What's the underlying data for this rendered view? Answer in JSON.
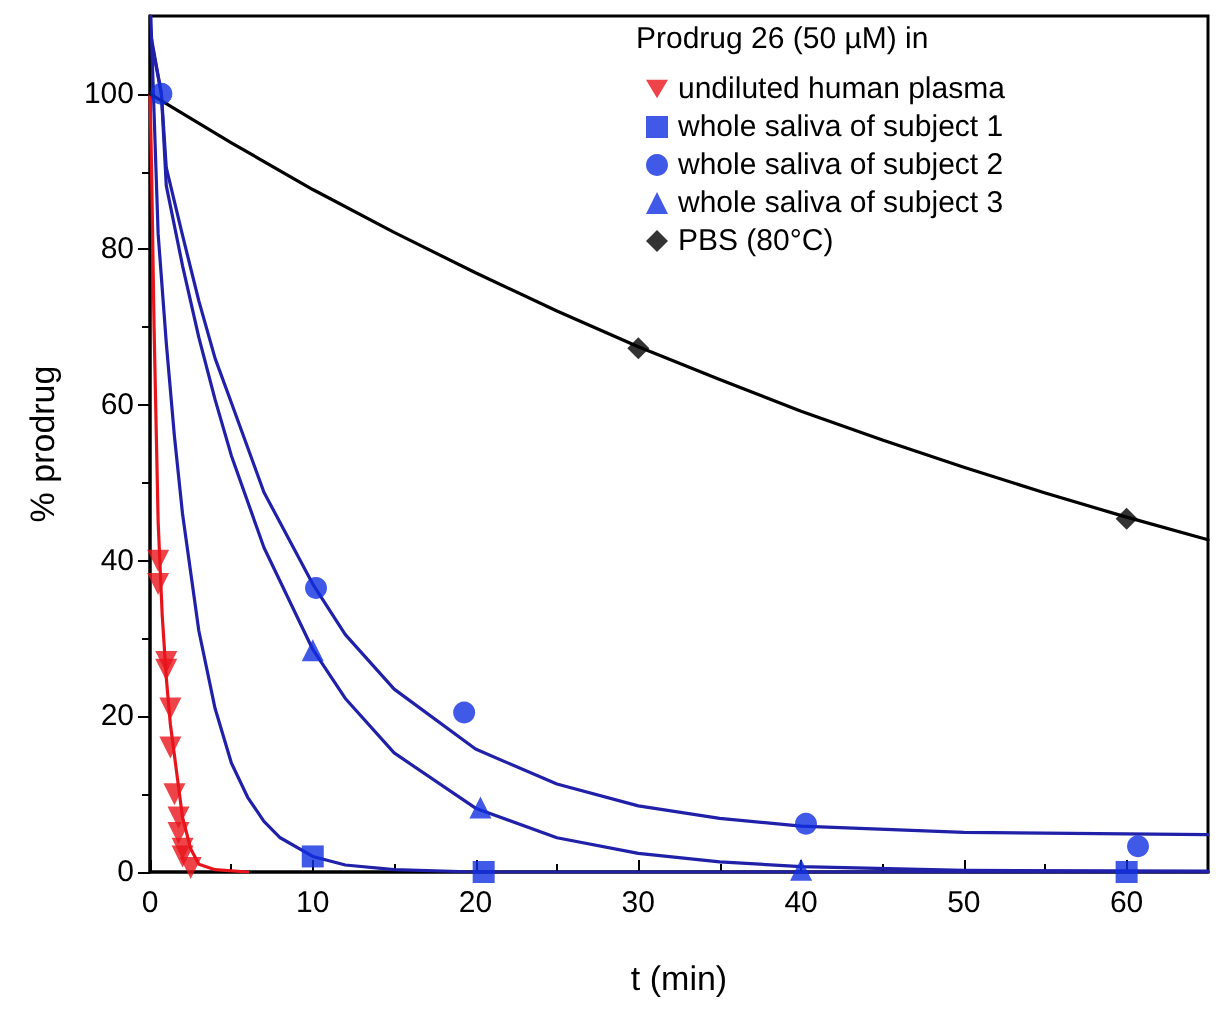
{
  "chart_data": {
    "type": "scatter",
    "xlabel": "t (min)",
    "ylabel": "% prodrug",
    "legend_title": "Prodrug 26 (50 µM) in",
    "legend": "top right",
    "grid": false,
    "xlim": [
      0,
      65
    ],
    "xticks": [
      0,
      10,
      20,
      30,
      40,
      50,
      60
    ],
    "ylim": [
      0,
      110
    ],
    "yticks": [
      0,
      20,
      40,
      60,
      80,
      100
    ],
    "series": [
      {
        "name": "undiluted human plasma",
        "color": "#e8141b",
        "marker": "triangle-down",
        "x": [
          0.5,
          0.5,
          1,
          1,
          1.25,
          1.25,
          1.5,
          1.75,
          1.75,
          2,
          2,
          2.25,
          2.5
        ],
        "values": [
          40,
          37,
          27,
          26,
          21,
          16,
          10,
          7,
          5,
          3,
          2,
          null,
          0.5
        ]
      },
      {
        "name": "whole saliva of subject 1",
        "color": "#1030e0",
        "marker": "square",
        "x": [
          10,
          20.5,
          60
        ],
        "values": [
          2,
          0,
          0
        ]
      },
      {
        "name": "whole saliva of subject 2",
        "color": "#1030e0",
        "marker": "circle",
        "x": [
          0.7,
          10.2,
          19.3,
          40.3,
          60.7
        ],
        "values": [
          100,
          36.5,
          20.5,
          6.2,
          3.3
        ]
      },
      {
        "name": "whole saliva of subject 3",
        "color": "#1030e0",
        "marker": "triangle",
        "x": [
          10,
          20.3,
          40
        ],
        "values": [
          28.5,
          8.3,
          0.3
        ]
      },
      {
        "name": "PBS (80°C)",
        "color": "#000000",
        "marker": "diamond",
        "x": [
          30,
          60
        ],
        "values": [
          67.3,
          45.4
        ]
      },
      {
        "type": "line",
        "color": "#e8141b",
        "marker": "none",
        "line_style": "solid",
        "x": [
          0,
          0.1,
          0.25,
          0.5,
          0.75,
          1,
          1.25,
          1.5,
          2,
          2.5,
          3,
          4,
          6
        ],
        "values": [
          100,
          90,
          70,
          45,
          33,
          25,
          19,
          15,
          7,
          3,
          1,
          0.3,
          0
        ]
      },
      {
        "type": "line",
        "color": "#2020a8",
        "marker": "none",
        "line_style": "solid",
        "x": [
          0.05,
          0.5,
          1,
          1.5,
          2,
          3,
          4,
          5,
          6,
          7,
          8,
          10,
          12,
          15,
          20,
          30,
          65
        ],
        "values": [
          110,
          82,
          68,
          56,
          46,
          31,
          21,
          14,
          9.6,
          6.5,
          4.4,
          2,
          0.9,
          0.3,
          0,
          0,
          0
        ]
      },
      {
        "type": "line",
        "color": "#2020a8",
        "marker": "none",
        "line_style": "solid",
        "x": [
          0.1,
          0.7,
          1,
          2,
          3,
          4,
          5,
          7,
          10,
          12,
          15,
          20,
          25,
          30,
          35,
          40,
          50,
          65
        ],
        "values": [
          107,
          100,
          90.5,
          81.8,
          73.4,
          66,
          60.3,
          48.8,
          37,
          30.5,
          23.5,
          15.8,
          11.3,
          8.5,
          6.9,
          5.9,
          5.1,
          4.8
        ]
      },
      {
        "type": "line",
        "color": "#2020a8",
        "marker": "none",
        "line_style": "solid",
        "x": [
          0.15,
          0.7,
          1,
          2,
          3,
          4,
          5,
          7,
          10,
          12,
          15,
          20,
          25,
          30,
          35,
          40,
          50,
          65
        ],
        "values": [
          106,
          100,
          88.2,
          77.9,
          68.7,
          60.7,
          53.5,
          41.7,
          28.6,
          22.3,
          15.3,
          8.2,
          4.4,
          2.4,
          1.3,
          0.7,
          0.2,
          0.1
        ]
      },
      {
        "type": "line",
        "color": "#000000",
        "marker": "none",
        "line_style": "solid",
        "x": [
          0,
          5,
          10,
          15,
          20,
          25,
          30,
          35,
          40,
          45,
          50,
          55,
          60,
          65
        ],
        "values": [
          100,
          93.7,
          87.7,
          82.2,
          77,
          72.1,
          67.5,
          63.3,
          59.2,
          55.5,
          52,
          48.7,
          45.6,
          42.7
        ]
      }
    ]
  }
}
